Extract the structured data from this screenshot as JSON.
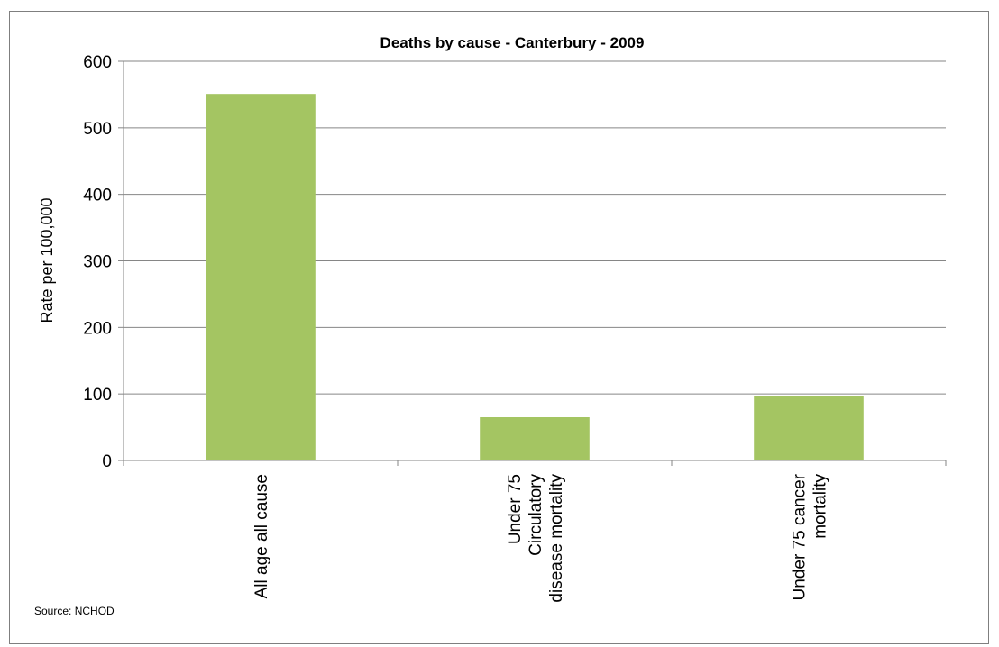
{
  "chart_data": {
    "type": "bar",
    "title": "Deaths by cause - Canterbury - 2009",
    "ylabel": "Rate per 100,000",
    "xlabel": "",
    "categories": [
      [
        "All age all cause"
      ],
      [
        "Under 75",
        "Circulatory",
        "disease mortality"
      ],
      [
        "Under 75 cancer",
        "mortality"
      ]
    ],
    "values": [
      551,
      65,
      97
    ],
    "ylim": [
      0,
      600
    ],
    "yticks": [
      0,
      100,
      200,
      300,
      400,
      500,
      600
    ],
    "ytick_labels": [
      "0",
      "100",
      "200",
      "300",
      "400",
      "500",
      "600"
    ],
    "grid": true,
    "legend": "none",
    "bar_color": "#a4c562",
    "source": "Source: NCHOD"
  }
}
